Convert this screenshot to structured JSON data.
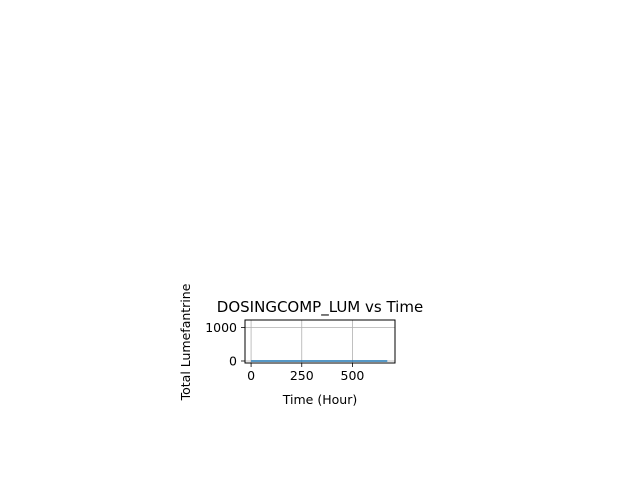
{
  "chart_data": {
    "type": "line",
    "title": "DOSINGCOMP_LUM vs Time",
    "xlabel": "Time (Hour)",
    "ylabel": "Total Lumefantrine",
    "xlim": [
      -30,
      710
    ],
    "ylim": [
      -60,
      1220
    ],
    "xticks": [
      0,
      250,
      500
    ],
    "yticks": [
      0,
      1000
    ],
    "grid": true,
    "series": [
      {
        "x": [
          0,
          24,
          48,
          72,
          96,
          120,
          168,
          240,
          336,
          504,
          672
        ],
        "y": [
          0,
          0,
          0,
          0,
          0,
          0,
          0,
          0,
          0,
          0,
          0
        ],
        "color": "#1f77b4"
      }
    ]
  }
}
